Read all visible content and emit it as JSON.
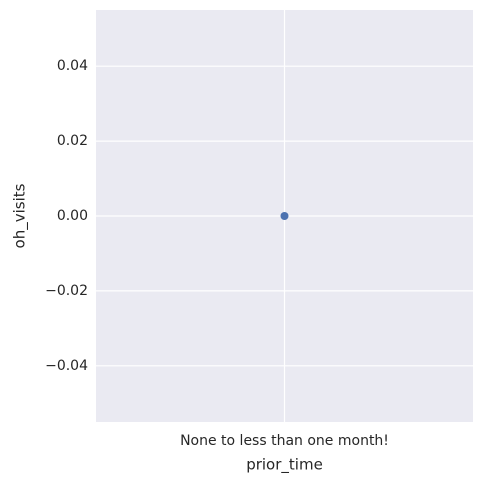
{
  "chart_data": {
    "type": "scatter",
    "x_label": "prior_time",
    "y_label": "oh_visits",
    "categories": [
      "None to less than one month!"
    ],
    "series": [
      {
        "color": "#4c72b0",
        "values": [
          0
        ]
      }
    ],
    "ylim": [
      -0.055,
      0.055
    ],
    "yticks": [
      {
        "value": -0.04,
        "label": "−0.04"
      },
      {
        "value": -0.02,
        "label": "−0.02"
      },
      {
        "value": 0,
        "label": "0.00"
      },
      0.02,
      0.04
    ],
    "grid": true
  }
}
